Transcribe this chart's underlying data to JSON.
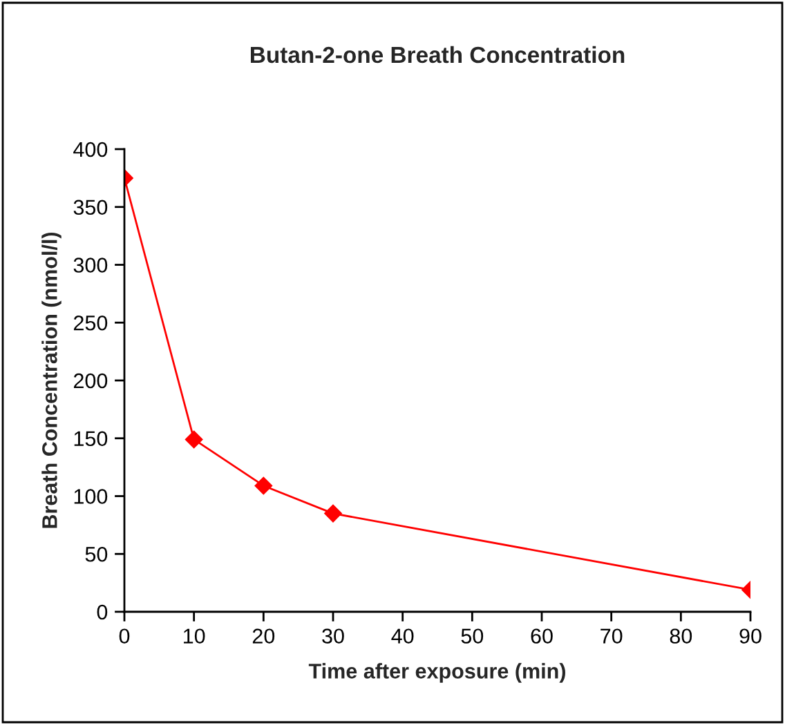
{
  "chart_data": {
    "type": "line",
    "title": "Butan-2-one Breath Concentration",
    "xlabel": "Time after exposure (min)",
    "ylabel": "Breath Concentration (nmol/l)",
    "x": [
      0,
      10,
      20,
      30,
      90
    ],
    "series": [
      {
        "color": "#ff0000",
        "values": [
          375,
          149,
          109,
          85,
          19
        ]
      }
    ],
    "xlim": [
      0,
      90
    ],
    "xticks": [
      0,
      10,
      20,
      30,
      40,
      50,
      60,
      70,
      80,
      90
    ],
    "ylim": [
      0,
      400
    ],
    "yticks": [
      0,
      50,
      100,
      150,
      200,
      250,
      300,
      350,
      400
    ],
    "grid": false,
    "legend": false,
    "marker": "diamond",
    "line_style": "solid"
  }
}
